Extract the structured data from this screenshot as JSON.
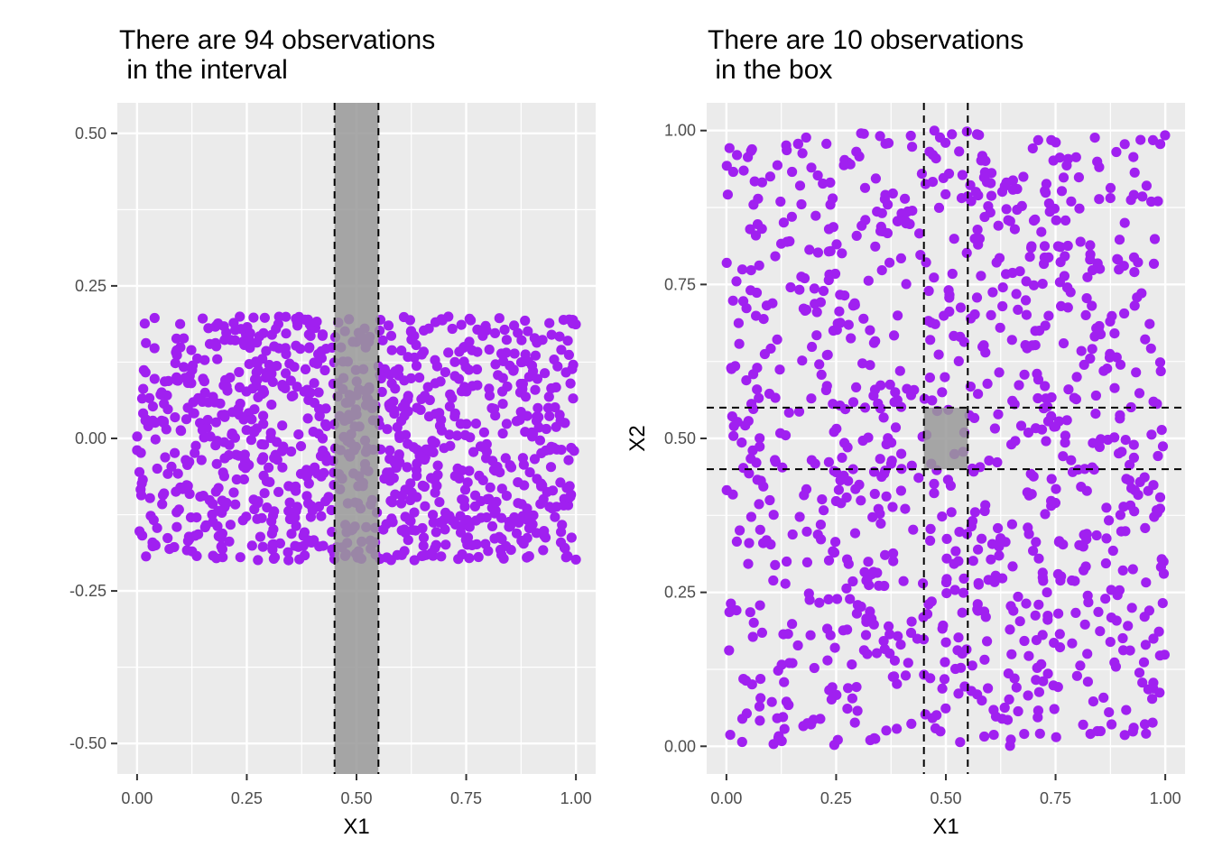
{
  "chart_data": [
    {
      "type": "scatter",
      "title": "There are 94 observations\n in the interval",
      "xlabel": "X1",
      "ylabel": "",
      "xlim": [
        -0.045,
        1.045
      ],
      "ylim": [
        -0.55,
        0.55
      ],
      "x_ticks": [
        0.0,
        0.25,
        0.5,
        0.75,
        1.0
      ],
      "x_tick_labels": [
        "0.00",
        "0.25",
        "0.50",
        "0.75",
        "1.00"
      ],
      "y_ticks": [
        -0.5,
        -0.25,
        0.0,
        0.25,
        0.5
      ],
      "y_tick_labels": [
        "-0.50",
        "-0.25",
        "0.00",
        "0.25",
        "0.50"
      ],
      "grid": true,
      "points": {
        "n": 1000,
        "x_range": [
          0,
          1
        ],
        "y_range": [
          -0.2,
          0.2
        ],
        "color": "#a020f0"
      },
      "highlight_interval": {
        "x": [
          0.45,
          0.55
        ],
        "fill": "#999999",
        "line_style": "dashed"
      }
    },
    {
      "type": "scatter",
      "title": "There are 10 observations\n in the box",
      "xlabel": "X1",
      "ylabel": "X2",
      "xlim": [
        -0.045,
        1.045
      ],
      "ylim": [
        -0.045,
        1.045
      ],
      "x_ticks": [
        0.0,
        0.25,
        0.5,
        0.75,
        1.0
      ],
      "x_tick_labels": [
        "0.00",
        "0.25",
        "0.50",
        "0.75",
        "1.00"
      ],
      "y_ticks": [
        0.0,
        0.25,
        0.5,
        0.75,
        1.0
      ],
      "y_tick_labels": [
        "0.00",
        "0.25",
        "0.50",
        "0.75",
        "1.00"
      ],
      "grid": true,
      "points": {
        "n": 1000,
        "x_range": [
          0,
          1
        ],
        "y_range": [
          0,
          1
        ],
        "color": "#a020f0"
      },
      "highlight_box": {
        "x": [
          0.45,
          0.55
        ],
        "y": [
          0.45,
          0.55
        ],
        "fill": "#999999",
        "line_style": "dashed"
      }
    }
  ],
  "colors": {
    "panel_background": "#ebebeb",
    "grid": "#ffffff",
    "point": "#a020f0",
    "highlight": "#999999"
  }
}
